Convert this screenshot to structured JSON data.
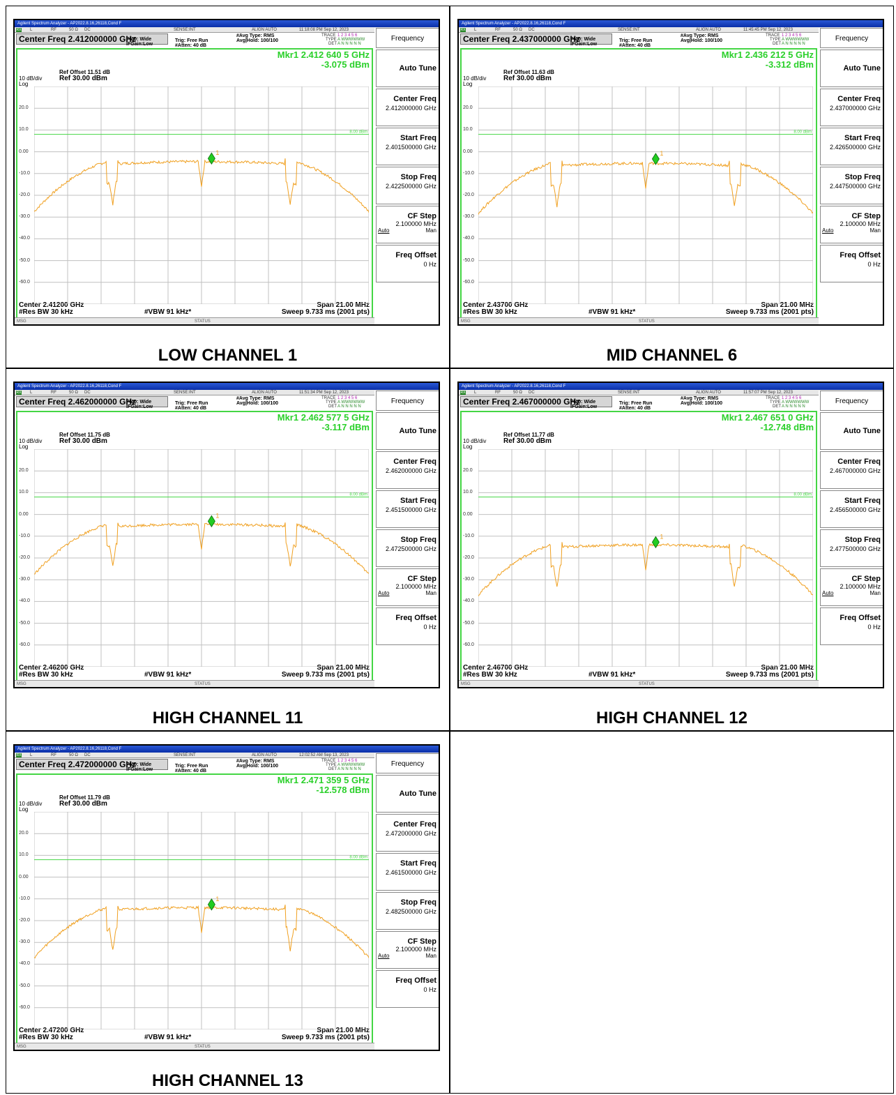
{
  "app_title": "Agilent Spectrum Analyzer - AP2022.8.16,26118,Cond F",
  "toolbar": {
    "l": "L",
    "rf": "RF",
    "ohm": "50 Ω",
    "dc": "DC",
    "sense": "SENSE:INT",
    "align": "ALIGN AUTO"
  },
  "common": {
    "pno": "PNO: Wide",
    "ifgain": "IFGain:Low",
    "trig": "Trig: Free Run",
    "atten": "#Atten: 40 dB",
    "avg_type": "#Avg Type: RMS",
    "avg_hold": "Avg|Hold: 100/100",
    "trace_lbl": "TRACE",
    "type_lbl": "TYPE",
    "det_lbl": "DET",
    "trace_vals": "1 2 3 4 5 6",
    "type_vals": "A WWWWWW",
    "det_vals": "A N N N N N",
    "scale": "10 dB/div",
    "log": "Log",
    "ref": "Ref 30.00 dBm",
    "res_bw": "#Res BW 30 kHz",
    "vbw": "#VBW 91 kHz*",
    "span": "Span 21.00 MHz",
    "sweep": "Sweep  9.733 ms (2001 pts)",
    "msg": "MSG",
    "status": "STATUS",
    "line_label": "8.00 dBm",
    "marker_num": "1",
    "y_ticks": [
      "20.0",
      "10.0",
      "0.00",
      "-10.0",
      "-20.0",
      "-30.0",
      "-40.0",
      "-50.0",
      "-60.0"
    ]
  },
  "panel_items": {
    "header": "Frequency",
    "auto_tune": "Auto Tune",
    "center_freq": "Center Freq",
    "start_freq": "Start Freq",
    "stop_freq": "Stop Freq",
    "cf_step": "CF Step",
    "cf_step_val": "2.100000 MHz",
    "auto": "Auto",
    "man": "Man",
    "freq_offset": "Freq Offset",
    "freq_offset_val": "0 Hz"
  },
  "plots": [
    {
      "caption": "LOW CHANNEL 1",
      "timestamp": "11:18:08 PM Sep 12, 2023",
      "center_freq": "Center Freq 2.412000000 GHz",
      "ref_offset": "Ref Offset 11.51 dB",
      "mkr_freq": "Mkr1 2.412 640 5 GHz",
      "mkr_level": "-3.075 dBm",
      "center": "Center 2.41200 GHz",
      "cf_val": "2.412000000 GHz",
      "start_val": "2.401500000 GHz",
      "stop_val": "2.422500000 GHz",
      "marker_dbm": -3.075,
      "peak_dbm": -2.5
    },
    {
      "caption": "MID CHANNEL 6",
      "timestamp": "11:45:45 PM Sep 12, 2023",
      "center_freq": "Center Freq 2.437000000 GHz",
      "ref_offset": "Ref Offset 11.63 dB",
      "mkr_freq": "Mkr1 2.436 212 5 GHz",
      "mkr_level": "-3.312 dBm",
      "center": "Center 2.43700 GHz",
      "cf_val": "2.437000000 GHz",
      "start_val": "2.426500000 GHz",
      "stop_val": "2.447500000 GHz",
      "marker_dbm": -3.312,
      "peak_dbm": -3.3
    },
    {
      "caption": "HIGH CHANNEL 11",
      "timestamp": "11:51:34 PM Sep 12, 2023",
      "center_freq": "Center Freq 2.462000000 GHz",
      "ref_offset": "Ref Offset 11.75 dB",
      "mkr_freq": "Mkr1 2.462 577 5 GHz",
      "mkr_level": "-3.117 dBm",
      "center": "Center 2.46200 GHz",
      "cf_val": "2.462000000 GHz",
      "start_val": "2.451500000 GHz",
      "stop_val": "2.472500000 GHz",
      "marker_dbm": -3.117,
      "peak_dbm": -2.5
    },
    {
      "caption": "HIGH CHANNEL 12",
      "timestamp": "11:57:07 PM Sep 12, 2023",
      "center_freq": "Center Freq 2.467000000 GHz",
      "ref_offset": "Ref Offset 11.77 dB",
      "mkr_freq": "Mkr1 2.467 651 0 GHz",
      "mkr_level": "-12.748 dBm",
      "center": "Center 2.46700 GHz",
      "cf_val": "2.467000000 GHz",
      "start_val": "2.456500000 GHz",
      "stop_val": "2.477500000 GHz",
      "marker_dbm": -12.748,
      "peak_dbm": -12.0
    },
    {
      "caption": "HIGH CHANNEL 13",
      "timestamp": "12:02:52 AM Sep 13, 2023",
      "center_freq": "Center Freq 2.472000000 GHz",
      "ref_offset": "Ref Offset 11.79 dB",
      "mkr_freq": "Mkr1 2.471 359 5 GHz",
      "mkr_level": "-12.578 dBm",
      "center": "Center 2.47200 GHz",
      "cf_val": "2.472000000 GHz",
      "start_val": "2.461500000 GHz",
      "stop_val": "2.482500000 GHz",
      "marker_dbm": -12.578,
      "peak_dbm": -12.0
    }
  ],
  "colors": {
    "trace": "#f0a020",
    "marker": "#22cc22",
    "grid": "#c0c0c0",
    "border": "#44d644",
    "display_line": "#44d644"
  }
}
